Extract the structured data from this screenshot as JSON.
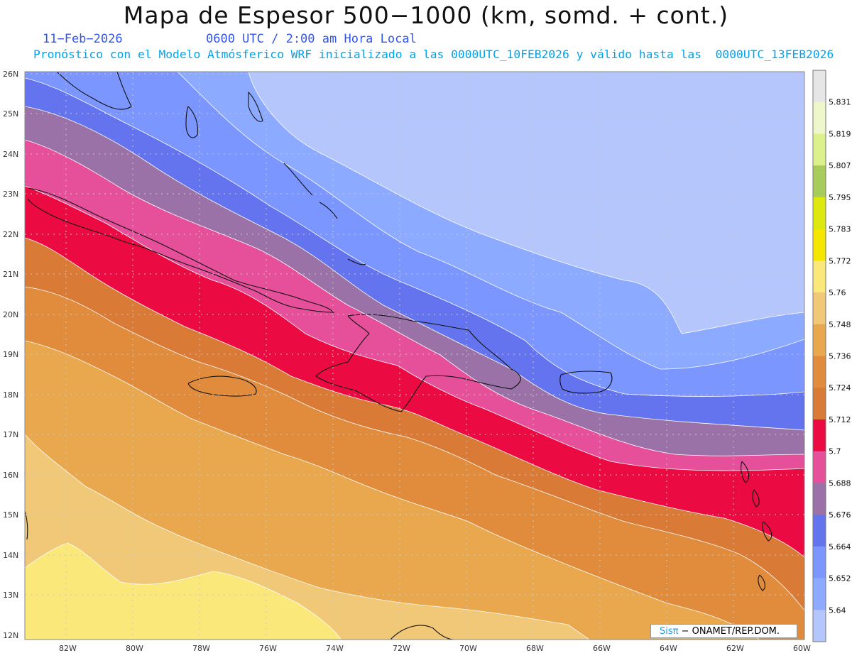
{
  "title": "Mapa de Espesor 500−1000 (km, somd. + cont.)",
  "date": "11−Feb−2026",
  "time": "0600 UTC / 2:00 am Hora Local",
  "model_line": "Pronóstico con el Modelo Atmósferico WRF inicializado a las 0000UTC_10FEB2026 y válido hasta las  0000UTC_13FEB2026",
  "lat_ticks": [
    "26N",
    "25N",
    "24N",
    "23N",
    "22N",
    "21N",
    "20N",
    "19N",
    "18N",
    "17N",
    "16N",
    "15N",
    "14N",
    "13N",
    "12N"
  ],
  "lon_ticks": [
    "82W",
    "80W",
    "78W",
    "76W",
    "74W",
    "72W",
    "70W",
    "68W",
    "66W",
    "64W",
    "62W",
    "60W"
  ],
  "colorbar": {
    "labels": [
      "5.831",
      "5.819",
      "5.807",
      "5.795",
      "5.783",
      "5.772",
      "5.76",
      "5.748",
      "5.736",
      "5.724",
      "5.712",
      "5.7",
      "5.688",
      "5.676",
      "5.664",
      "5.652",
      "5.64"
    ],
    "colors": [
      "#e6e6e6",
      "#eef6cc",
      "#dcf08c",
      "#a8cc5a",
      "#dce80e",
      "#f5e600",
      "#fbe87a",
      "#f0c878",
      "#eaa84e",
      "#e08c3c",
      "#d97a36",
      "#ec0a42",
      "#e6509a",
      "#9a72a8",
      "#6474ee",
      "#7c96ff",
      "#8caaff",
      "#b4c6fc"
    ]
  },
  "contour_bands": [
    {
      "level": "5.64",
      "color": "#b4c6fc"
    },
    {
      "level": "5.652",
      "color": "#8caaff"
    },
    {
      "level": "5.664",
      "color": "#7c96ff"
    },
    {
      "level": "5.676",
      "color": "#6474ee"
    },
    {
      "level": "5.688",
      "color": "#9a72a8"
    },
    {
      "level": "5.7",
      "color": "#e6509a"
    },
    {
      "level": "5.712",
      "color": "#ec0a42"
    },
    {
      "level": "5.724",
      "color": "#d97a36"
    },
    {
      "level": "5.736",
      "color": "#e08c3c"
    },
    {
      "level": "5.748",
      "color": "#eaa84e"
    },
    {
      "level": "5.76",
      "color": "#f0c878"
    },
    {
      "level": "5.772",
      "color": "#fbe87a"
    }
  ],
  "credit": {
    "logo": "Sisπ",
    "text": "− ONAMET/REP.DOM."
  }
}
